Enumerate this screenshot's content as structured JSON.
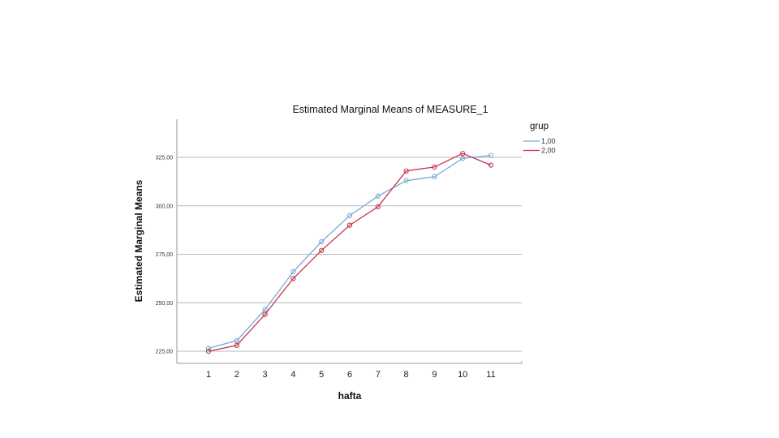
{
  "colors": {
    "series_1": "#7aa9d6",
    "series_2": "#c8324f",
    "grid": "#b8b8b8",
    "axis": "#999999"
  },
  "chart_data": {
    "type": "line",
    "title": "Estimated Marginal Means of MEASURE_1",
    "xlabel": "hafta",
    "ylabel": "Estimated Marginal Means",
    "x": [
      1,
      2,
      3,
      4,
      5,
      6,
      7,
      8,
      9,
      10,
      11
    ],
    "x_tick_labels": [
      "1",
      "2",
      "3",
      "4",
      "5",
      "6",
      "7",
      "8",
      "9",
      "10",
      "11"
    ],
    "y_ticks": [
      225,
      250,
      275,
      300,
      325
    ],
    "y_tick_labels": [
      "225,00",
      "250,00",
      "275,00",
      "300,00",
      "325,00"
    ],
    "ylim": [
      220,
      345
    ],
    "grid": true,
    "legend": {
      "title": "grup",
      "position": "top-right"
    },
    "series": [
      {
        "name": "1,00",
        "color": "#7aa9d6",
        "values": [
          226.5,
          230.5,
          246.5,
          266.0,
          281.5,
          295.0,
          305.0,
          313.0,
          315.0,
          324.5,
          326.0
        ]
      },
      {
        "name": "2,00",
        "color": "#c8324f",
        "values": [
          225.0,
          228.0,
          244.0,
          262.5,
          277.0,
          290.0,
          299.5,
          318.0,
          320.0,
          327.0,
          321.0
        ]
      }
    ]
  }
}
